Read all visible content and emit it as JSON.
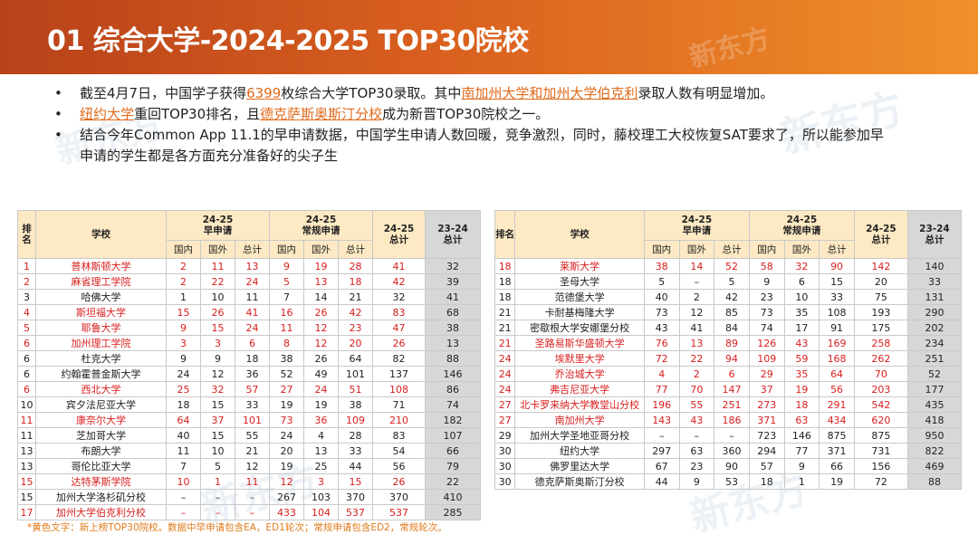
{
  "header": {
    "title": "01 综合大学-2024-2025 TOP30院校"
  },
  "bullets": {
    "b1": {
      "p1": "截至4月7日，中国学子获得",
      "h1": "6399",
      "p2": "枚综合大学TOP30录取。其中",
      "h2": "南加州大学和加州大学伯克利",
      "p3": "录取人数有明显增加。"
    },
    "b2": {
      "h1": "纽约大学",
      "p1": "重回TOP30排名，且",
      "h2": "德克萨斯奥斯汀分校",
      "p2": "成为新晋TOP30院校之一。"
    },
    "b3": {
      "p1": "结合今年Common App 11.1的早申请数据，中国学生申请人数回暖，竞争激烈，同时，藤校理工大校恢复SAT要求了，所以能参加早",
      "p2": "申请的学生都是各方面充分准备好的尖子生"
    }
  },
  "table_headers": {
    "rank": "排名",
    "school": "学校",
    "early": "24-25\n早申请",
    "regular": "24-25\n常规申请",
    "total2425": "24-25\n总计",
    "total2324": "23-24\n总计",
    "domestic": "国内",
    "intl": "国外",
    "total": "总计"
  },
  "left_rows": [
    {
      "rank": "1",
      "school": "普林斯顿大学",
      "e": [
        "2",
        "11",
        "13"
      ],
      "r": [
        "9",
        "19",
        "28"
      ],
      "t": "41",
      "p": "32",
      "red": true
    },
    {
      "rank": "2",
      "school": "麻省理工学院",
      "e": [
        "2",
        "22",
        "24"
      ],
      "r": [
        "5",
        "13",
        "18"
      ],
      "t": "42",
      "p": "39",
      "red": true
    },
    {
      "rank": "3",
      "school": "哈佛大学",
      "e": [
        "1",
        "10",
        "11"
      ],
      "r": [
        "7",
        "14",
        "21"
      ],
      "t": "32",
      "p": "41",
      "red": false
    },
    {
      "rank": "4",
      "school": "斯坦福大学",
      "e": [
        "15",
        "26",
        "41"
      ],
      "r": [
        "16",
        "26",
        "42"
      ],
      "t": "83",
      "p": "68",
      "red": true
    },
    {
      "rank": "5",
      "school": "耶鲁大学",
      "e": [
        "9",
        "15",
        "24"
      ],
      "r": [
        "11",
        "12",
        "23"
      ],
      "t": "47",
      "p": "38",
      "red": true
    },
    {
      "rank": "6",
      "school": "加州理工学院",
      "e": [
        "3",
        "3",
        "6"
      ],
      "r": [
        "8",
        "12",
        "20"
      ],
      "t": "26",
      "p": "13",
      "red": true
    },
    {
      "rank": "6",
      "school": "杜克大学",
      "e": [
        "9",
        "9",
        "18"
      ],
      "r": [
        "38",
        "26",
        "64"
      ],
      "t": "82",
      "p": "88",
      "red": false
    },
    {
      "rank": "6",
      "school": "约翰霍普金斯大学",
      "e": [
        "24",
        "12",
        "36"
      ],
      "r": [
        "52",
        "49",
        "101"
      ],
      "t": "137",
      "p": "146",
      "red": false
    },
    {
      "rank": "6",
      "school": "西北大学",
      "e": [
        "25",
        "32",
        "57"
      ],
      "r": [
        "27",
        "24",
        "51"
      ],
      "t": "108",
      "p": "86",
      "red": true
    },
    {
      "rank": "10",
      "school": "宾夕法尼亚大学",
      "e": [
        "18",
        "15",
        "33"
      ],
      "r": [
        "19",
        "19",
        "38"
      ],
      "t": "71",
      "p": "74",
      "red": false
    },
    {
      "rank": "11",
      "school": "康奈尔大学",
      "e": [
        "64",
        "37",
        "101"
      ],
      "r": [
        "73",
        "36",
        "109"
      ],
      "t": "210",
      "p": "182",
      "red": true
    },
    {
      "rank": "11",
      "school": "芝加哥大学",
      "e": [
        "40",
        "15",
        "55"
      ],
      "r": [
        "24",
        "4",
        "28"
      ],
      "t": "83",
      "p": "107",
      "red": false
    },
    {
      "rank": "13",
      "school": "布朗大学",
      "e": [
        "11",
        "10",
        "21"
      ],
      "r": [
        "20",
        "13",
        "33"
      ],
      "t": "54",
      "p": "66",
      "red": false
    },
    {
      "rank": "13",
      "school": "哥伦比亚大学",
      "e": [
        "7",
        "5",
        "12"
      ],
      "r": [
        "19",
        "25",
        "44"
      ],
      "t": "56",
      "p": "79",
      "red": false
    },
    {
      "rank": "15",
      "school": "达特茅斯学院",
      "e": [
        "10",
        "1",
        "11"
      ],
      "r": [
        "12",
        "3",
        "15"
      ],
      "t": "26",
      "p": "22",
      "red": true
    },
    {
      "rank": "15",
      "school": "加州大学洛杉矶分校",
      "e": [
        "–",
        "–",
        "–"
      ],
      "r": [
        "267",
        "103",
        "370"
      ],
      "t": "370",
      "p": "410",
      "red": false
    },
    {
      "rank": "17",
      "school": "加州大学伯克利分校",
      "e": [
        "–",
        "–",
        "–"
      ],
      "r": [
        "433",
        "104",
        "537"
      ],
      "t": "537",
      "p": "285",
      "red": true
    }
  ],
  "right_rows": [
    {
      "rank": "18",
      "school": "莱斯大学",
      "e": [
        "38",
        "14",
        "52"
      ],
      "r": [
        "58",
        "32",
        "90"
      ],
      "t": "142",
      "p": "140",
      "red": true
    },
    {
      "rank": "18",
      "school": "圣母大学",
      "e": [
        "5",
        "–",
        "5"
      ],
      "r": [
        "9",
        "6",
        "15"
      ],
      "t": "20",
      "p": "33",
      "red": false
    },
    {
      "rank": "18",
      "school": "范德堡大学",
      "e": [
        "40",
        "2",
        "42"
      ],
      "r": [
        "23",
        "10",
        "33"
      ],
      "t": "75",
      "p": "131",
      "red": false
    },
    {
      "rank": "21",
      "school": "卡耐基梅隆大学",
      "e": [
        "73",
        "12",
        "85"
      ],
      "r": [
        "73",
        "35",
        "108"
      ],
      "t": "193",
      "p": "290",
      "red": false
    },
    {
      "rank": "21",
      "school": "密歇根大学安娜堡分校",
      "e": [
        "43",
        "41",
        "84"
      ],
      "r": [
        "74",
        "17",
        "91"
      ],
      "t": "175",
      "p": "202",
      "red": false
    },
    {
      "rank": "21",
      "school": "圣路易斯华盛顿大学",
      "e": [
        "76",
        "13",
        "89"
      ],
      "r": [
        "126",
        "43",
        "169"
      ],
      "t": "258",
      "p": "234",
      "red": true
    },
    {
      "rank": "24",
      "school": "埃默里大学",
      "e": [
        "72",
        "22",
        "94"
      ],
      "r": [
        "109",
        "59",
        "168"
      ],
      "t": "262",
      "p": "251",
      "red": true
    },
    {
      "rank": "24",
      "school": "乔治城大学",
      "e": [
        "4",
        "2",
        "6"
      ],
      "r": [
        "29",
        "35",
        "64"
      ],
      "t": "70",
      "p": "52",
      "red": true
    },
    {
      "rank": "24",
      "school": "弗吉尼亚大学",
      "e": [
        "77",
        "70",
        "147"
      ],
      "r": [
        "37",
        "19",
        "56"
      ],
      "t": "203",
      "p": "177",
      "red": true
    },
    {
      "rank": "27",
      "school": "北卡罗来纳大学教堂山分校",
      "e": [
        "196",
        "55",
        "251"
      ],
      "r": [
        "273",
        "18",
        "291"
      ],
      "t": "542",
      "p": "435",
      "red": true
    },
    {
      "rank": "27",
      "school": "南加州大学",
      "e": [
        "143",
        "43",
        "186"
      ],
      "r": [
        "371",
        "63",
        "434"
      ],
      "t": "620",
      "p": "418",
      "red": true
    },
    {
      "rank": "29",
      "school": "加州大学圣地亚哥分校",
      "e": [
        "–",
        "–",
        "–"
      ],
      "r": [
        "723",
        "146",
        "875"
      ],
      "t": "875",
      "p": "950",
      "red": false
    },
    {
      "rank": "30",
      "school": "纽约大学",
      "e": [
        "297",
        "63",
        "360"
      ],
      "r": [
        "294",
        "77",
        "371"
      ],
      "t": "731",
      "p": "822",
      "red": false
    },
    {
      "rank": "30",
      "school": "佛罗里达大学",
      "e": [
        "67",
        "23",
        "90"
      ],
      "r": [
        "57",
        "9",
        "66"
      ],
      "t": "156",
      "p": "469",
      "red": false
    },
    {
      "rank": "30",
      "school": "德克萨斯奥斯汀分校",
      "e": [
        "44",
        "9",
        "53"
      ],
      "r": [
        "18",
        "1",
        "19"
      ],
      "t": "72",
      "p": "88",
      "red": false
    }
  ],
  "footnote": "*黄色文字：新上榜TOP30院校。数据中早申请包含EA，ED1轮次；常规申请包含ED2，常规轮次。",
  "colors": {
    "accent": "#d9601f",
    "highlight": "#e06a1a",
    "red_text": "#d81e1e",
    "header_fill": "#fde9c3",
    "gray_col": "#d7d7d7"
  }
}
